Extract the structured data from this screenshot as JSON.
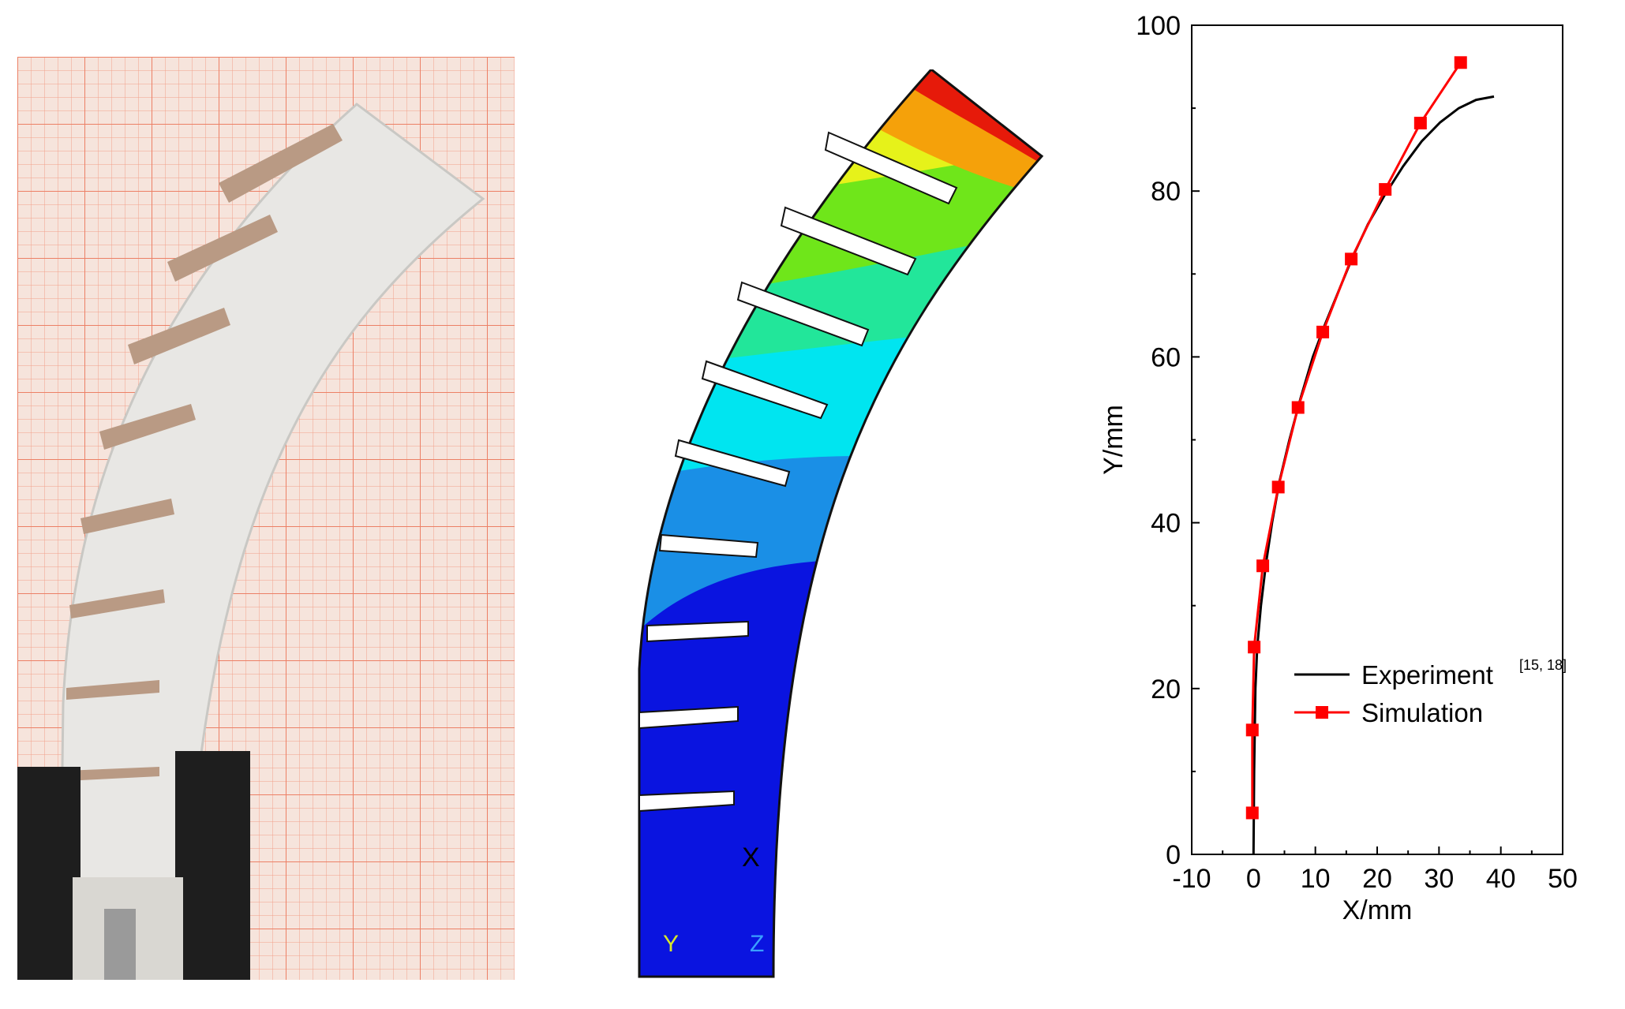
{
  "figure": {
    "photo_panel": {
      "description_icon": "photo-of-soft-bending-actuator"
    },
    "fem_panel": {
      "triad_labels": [
        "X",
        "Y",
        "Z"
      ],
      "colors": [
        "#0a14e0",
        "#1a8fe6",
        "#00e5f0",
        "#22e69a",
        "#6fe61a",
        "#e6f21a",
        "#f5a10a",
        "#e61a0a"
      ]
    }
  },
  "chart_data": {
    "type": "line",
    "xlabel": "X/mm",
    "ylabel": "Y/mm",
    "xlim": [
      -10,
      50
    ],
    "ylim": [
      0,
      100
    ],
    "xticks": [
      "-10",
      "0",
      "10",
      "20",
      "30",
      "40",
      "50"
    ],
    "yticks": [
      "0",
      "20",
      "40",
      "60",
      "80",
      "100"
    ],
    "grid": false,
    "legend_position": "center-right",
    "series": [
      {
        "name": "Experiment",
        "name_superscript": "[15, 18]",
        "color": "#000000",
        "marker": "none",
        "x": [
          0,
          0.1,
          0.3,
          0.6,
          1.2,
          2.0,
          3.0,
          4.2,
          5.8,
          7.6,
          9.6,
          11.6,
          13.8,
          16.0,
          18.5,
          21.2,
          24.2,
          27.2,
          30.2,
          33.2,
          36.0,
          38.9
        ],
        "y": [
          0,
          10,
          20,
          25,
          30,
          35,
          40,
          45,
          50,
          55,
          60,
          64,
          68,
          72,
          76,
          79.5,
          83,
          86,
          88.3,
          90,
          91,
          91.4
        ]
      },
      {
        "name": "Simulation",
        "color": "#ff0000",
        "marker": "square",
        "x": [
          -0.2,
          -0.2,
          0.1,
          1.5,
          4.0,
          7.2,
          11.2,
          15.8,
          21.3,
          27.0,
          33.5
        ],
        "y": [
          5,
          15,
          25,
          34.8,
          44.3,
          53.9,
          63.0,
          71.8,
          80.2,
          88.2,
          95.5
        ]
      }
    ]
  }
}
